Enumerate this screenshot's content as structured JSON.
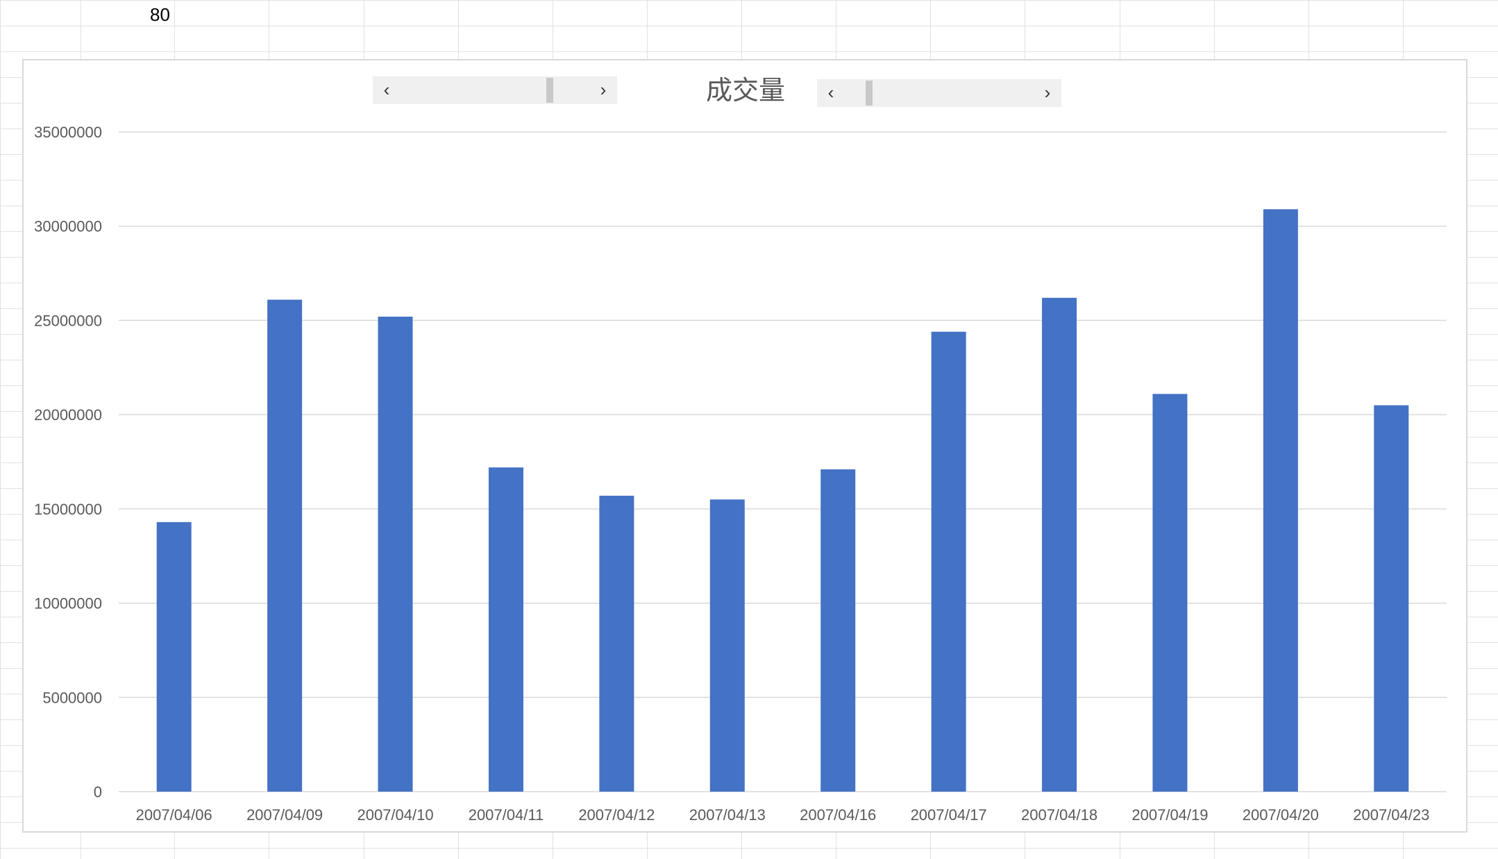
{
  "sheet": {
    "cell_value": "80"
  },
  "scrollbars": [
    {
      "left_arrow": "‹",
      "right_arrow": "›",
      "position": 0.75
    },
    {
      "left_arrow": "‹",
      "right_arrow": "›",
      "position": 0.13
    }
  ],
  "colors": {
    "bar": "#4472c4",
    "gridline": "#d9d9d9",
    "axis_text": "#595959"
  },
  "chart_data": {
    "type": "bar",
    "title": "成交量",
    "categories": [
      "2007/04/06",
      "2007/04/09",
      "2007/04/10",
      "2007/04/11",
      "2007/04/12",
      "2007/04/13",
      "2007/04/16",
      "2007/04/17",
      "2007/04/18",
      "2007/04/19",
      "2007/04/20",
      "2007/04/23"
    ],
    "series": [
      {
        "values": [
          14300000,
          26100000,
          25200000,
          17200000,
          15700000,
          15500000,
          17100000,
          24400000,
          26200000,
          21100000,
          30900000,
          20500000
        ]
      }
    ],
    "ylim": [
      0,
      35000000
    ],
    "yticks": [
      "0",
      "5000000",
      "10000000",
      "15000000",
      "20000000",
      "25000000",
      "30000000",
      "35000000"
    ],
    "grid": true,
    "legend": "none"
  }
}
